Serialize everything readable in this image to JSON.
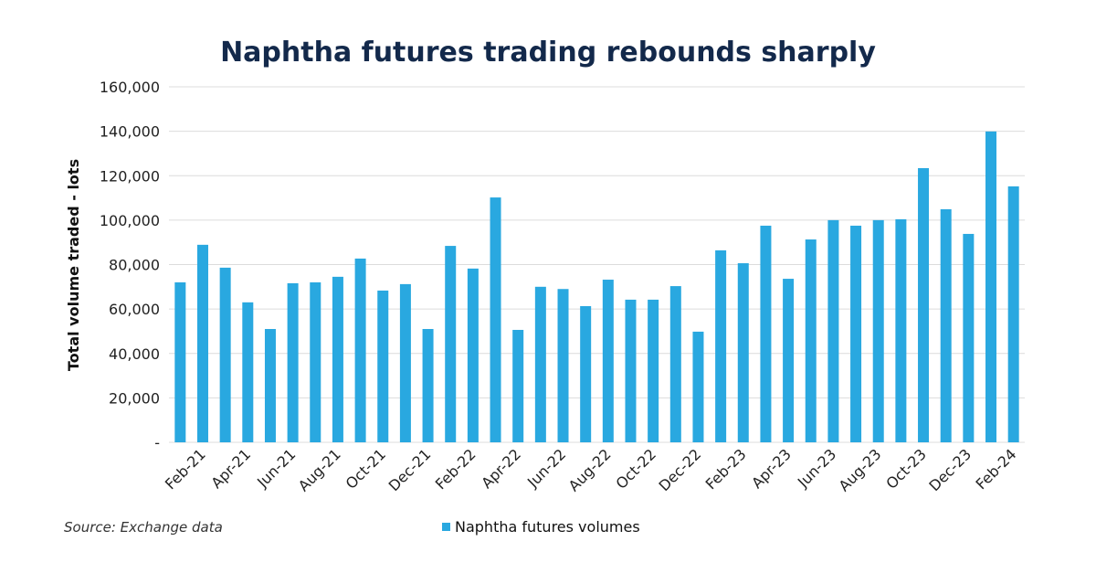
{
  "chart_data": {
    "type": "bar",
    "title": "Naphtha futures trading rebounds sharply",
    "ylabel": "Total volume traded - lots",
    "xlabel": "",
    "ylim": [
      0,
      160000
    ],
    "y_ticks": [
      "-",
      "20,000",
      "40,000",
      "60,000",
      "80,000",
      "100,000",
      "120,000",
      "140,000",
      "160,000"
    ],
    "x_tick_labels": [
      "Feb-21",
      "Apr-21",
      "Jun-21",
      "Aug-21",
      "Oct-21",
      "Dec-21",
      "Feb-22",
      "Apr-22",
      "Jun-22",
      "Aug-22",
      "Oct-22",
      "Dec-22",
      "Feb-23",
      "Apr-23",
      "Jun-23",
      "Aug-23",
      "Oct-23",
      "Dec-23",
      "Feb-24"
    ],
    "grid": true,
    "legend_position": "bottom",
    "series": [
      {
        "name": "Naphtha futures volumes",
        "color": "#29a8e0",
        "values": [
          72000,
          88900,
          78600,
          63000,
          51000,
          71600,
          72000,
          74500,
          82700,
          68300,
          71200,
          51000,
          88400,
          78200,
          110200,
          50600,
          70000,
          69000,
          61300,
          73200,
          64200,
          64200,
          70300,
          49800,
          86400,
          80600,
          97500,
          73600,
          91300,
          100000,
          97500,
          100000,
          100400,
          123400,
          104900,
          93800,
          139900,
          115200
        ]
      }
    ]
  },
  "source": "Source: Exchange data"
}
